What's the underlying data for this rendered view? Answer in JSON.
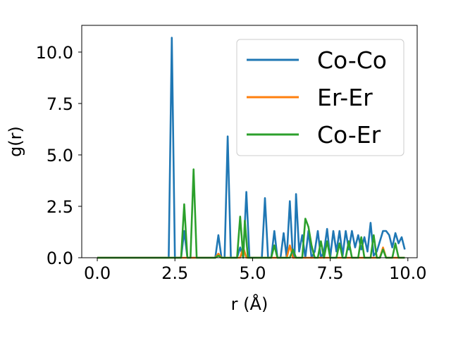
{
  "chart_data": {
    "type": "line",
    "xlabel": "r (Å)",
    "ylabel": "g(r)",
    "xlim": [
      -0.5,
      10.3
    ],
    "ylim": [
      0,
      11.3
    ],
    "xticks": [
      0.0,
      2.5,
      5.0,
      7.5,
      10.0
    ],
    "xtick_labels": [
      "0.0",
      "2.5",
      "5.0",
      "7.5",
      "10.0"
    ],
    "yticks": [
      0.0,
      2.5,
      5.0,
      7.5,
      10.0
    ],
    "ytick_labels": [
      "0.0",
      "2.5",
      "5.0",
      "7.5",
      "10.0"
    ],
    "grid": false,
    "legend_position": "top-right",
    "series": [
      {
        "name": "Co-Co",
        "color": "#1f77b4",
        "points": [
          [
            0,
            0
          ],
          [
            2.3,
            0
          ],
          [
            2.4,
            10.7
          ],
          [
            2.5,
            0
          ],
          [
            2.7,
            0
          ],
          [
            2.8,
            1.3
          ],
          [
            2.9,
            0
          ],
          [
            3.8,
            0
          ],
          [
            3.9,
            1.1
          ],
          [
            4.0,
            0
          ],
          [
            4.1,
            0
          ],
          [
            4.2,
            5.9
          ],
          [
            4.3,
            0
          ],
          [
            4.5,
            0
          ],
          [
            4.6,
            0.5
          ],
          [
            4.7,
            0
          ],
          [
            4.8,
            3.2
          ],
          [
            4.9,
            0
          ],
          [
            5.3,
            0
          ],
          [
            5.4,
            2.9
          ],
          [
            5.5,
            0
          ],
          [
            5.6,
            0
          ],
          [
            5.7,
            1.3
          ],
          [
            5.8,
            0
          ],
          [
            5.9,
            0
          ],
          [
            6.0,
            1.2
          ],
          [
            6.1,
            0
          ],
          [
            6.2,
            2.75
          ],
          [
            6.3,
            0
          ],
          [
            6.35,
            0
          ],
          [
            6.4,
            3.1
          ],
          [
            6.5,
            0.3
          ],
          [
            6.6,
            1.1
          ],
          [
            6.7,
            0
          ],
          [
            6.8,
            1.3
          ],
          [
            6.9,
            0
          ],
          [
            7.0,
            0.3
          ],
          [
            7.1,
            1.3
          ],
          [
            7.2,
            0
          ],
          [
            7.3,
            0.3
          ],
          [
            7.4,
            1.4
          ],
          [
            7.5,
            0
          ],
          [
            7.6,
            1.3
          ],
          [
            7.7,
            0.3
          ],
          [
            7.8,
            1.3
          ],
          [
            7.9,
            0.1
          ],
          [
            8.0,
            1.3
          ],
          [
            8.1,
            0.4
          ],
          [
            8.2,
            1.3
          ],
          [
            8.3,
            0.5
          ],
          [
            8.4,
            1.1
          ],
          [
            8.5,
            0.4
          ],
          [
            8.6,
            1.0
          ],
          [
            8.7,
            0.3
          ],
          [
            8.8,
            1.7
          ],
          [
            8.9,
            0.1
          ],
          [
            9.0,
            0.3
          ],
          [
            9.1,
            0.8
          ],
          [
            9.2,
            1.3
          ],
          [
            9.3,
            1.3
          ],
          [
            9.4,
            1.1
          ],
          [
            9.5,
            0.5
          ],
          [
            9.6,
            1.2
          ],
          [
            9.7,
            0.7
          ],
          [
            9.8,
            1.0
          ],
          [
            9.9,
            0.4
          ]
        ]
      },
      {
        "name": "Er-Er",
        "color": "#ff7f0e",
        "points": [
          [
            0,
            0
          ],
          [
            3.8,
            0
          ],
          [
            3.9,
            0.2
          ],
          [
            4.0,
            0
          ],
          [
            4.6,
            0
          ],
          [
            4.7,
            0.5
          ],
          [
            4.8,
            0
          ],
          [
            6.1,
            0
          ],
          [
            6.2,
            0.6
          ],
          [
            6.3,
            0
          ],
          [
            9.1,
            0
          ],
          [
            9.2,
            0.5
          ],
          [
            9.3,
            0
          ],
          [
            9.9,
            0
          ]
        ]
      },
      {
        "name": "Co-Er",
        "color": "#2ca02c",
        "points": [
          [
            0,
            0
          ],
          [
            2.7,
            0
          ],
          [
            2.8,
            2.6
          ],
          [
            2.9,
            0
          ],
          [
            3.0,
            0
          ],
          [
            3.1,
            4.3
          ],
          [
            3.2,
            0
          ],
          [
            3.8,
            0
          ],
          [
            3.9,
            0.1
          ],
          [
            4.0,
            0
          ],
          [
            4.5,
            0
          ],
          [
            4.6,
            2.0
          ],
          [
            4.7,
            0
          ],
          [
            4.75,
            1.8
          ],
          [
            4.85,
            0
          ],
          [
            5.6,
            0
          ],
          [
            5.7,
            0.6
          ],
          [
            5.8,
            0
          ],
          [
            6.2,
            0
          ],
          [
            6.3,
            0.4
          ],
          [
            6.4,
            0
          ],
          [
            6.6,
            0
          ],
          [
            6.7,
            1.9
          ],
          [
            6.8,
            1.5
          ],
          [
            6.9,
            0.6
          ],
          [
            7.0,
            0
          ],
          [
            7.1,
            0
          ],
          [
            7.2,
            0.8
          ],
          [
            7.3,
            0
          ],
          [
            7.4,
            0.8
          ],
          [
            7.5,
            0
          ],
          [
            7.7,
            0
          ],
          [
            7.8,
            0.7
          ],
          [
            7.9,
            0
          ],
          [
            8.0,
            0
          ],
          [
            8.1,
            0.8
          ],
          [
            8.2,
            0
          ],
          [
            8.4,
            0
          ],
          [
            8.5,
            1.0
          ],
          [
            8.6,
            0
          ],
          [
            8.8,
            0
          ],
          [
            8.9,
            1.1
          ],
          [
            9.0,
            0
          ],
          [
            9.1,
            0
          ],
          [
            9.2,
            0.4
          ],
          [
            9.3,
            0
          ],
          [
            9.5,
            0
          ],
          [
            9.6,
            0.7
          ],
          [
            9.7,
            0
          ],
          [
            9.9,
            0
          ]
        ]
      }
    ]
  }
}
